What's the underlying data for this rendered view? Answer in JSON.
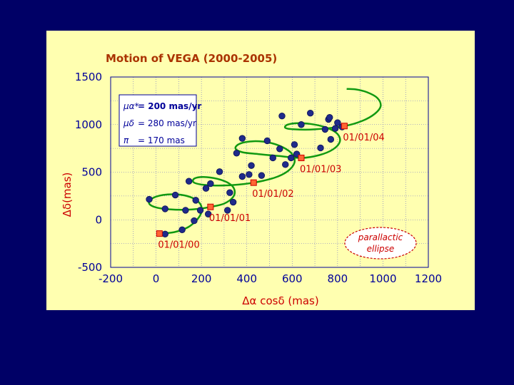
{
  "chart_data": {
    "type": "scatter",
    "title": "Motion of VEGA (2000-2005)",
    "xlabel": "Δα cosδ (mas)",
    "ylabel": "Δδ(mas)",
    "xlim": [
      -200,
      1200
    ],
    "ylim": [
      -500,
      1500
    ],
    "x_ticks": [
      -200,
      0,
      200,
      400,
      600,
      800,
      1000,
      1200
    ],
    "y_ticks": [
      -500,
      0,
      500,
      1000,
      1500
    ],
    "grid": true,
    "colors": {
      "background": "#ffffb0",
      "frame": "#000066",
      "grid": "#6666cc",
      "text": "#000099",
      "track": "#119911",
      "points": "#1f2a8a",
      "epochs": "#cc0000",
      "title": "#aa3300"
    },
    "legend": {
      "lines": [
        {
          "symbol": "μα*",
          "text": "= 200 mas/yr"
        },
        {
          "symbol": "μδ",
          "text": "= 280 mas/yr"
        },
        {
          "symbol": "π",
          "text": "= 170 mas"
        }
      ]
    },
    "callout": {
      "line1": "parallactic",
      "line2": "ellipse"
    },
    "series": [
      {
        "values": [
          [
            40,
            -150
          ],
          [
            115,
            -105
          ],
          [
            168,
            -10
          ],
          [
            195,
            100
          ],
          [
            175,
            205
          ],
          [
            85,
            260
          ],
          [
            -30,
            215
          ],
          [
            40,
            115
          ],
          [
            130,
            100
          ],
          [
            230,
            60
          ],
          [
            315,
            100
          ],
          [
            340,
            185
          ],
          [
            325,
            285
          ],
          [
            240,
            380
          ],
          [
            145,
            405
          ],
          [
            220,
            330
          ],
          [
            280,
            505
          ],
          [
            420,
            570
          ],
          [
            515,
            650
          ],
          [
            545,
            745
          ],
          [
            490,
            830
          ],
          [
            380,
            855
          ],
          [
            355,
            700
          ],
          [
            380,
            455
          ],
          [
            465,
            465
          ],
          [
            570,
            580
          ],
          [
            620,
            690
          ],
          [
            725,
            755
          ],
          [
            770,
            845
          ],
          [
            745,
            950
          ],
          [
            640,
            1000
          ],
          [
            555,
            1090
          ],
          [
            680,
            1120
          ],
          [
            760,
            1055
          ],
          [
            790,
            960
          ],
          [
            820,
            975
          ]
        ]
      },
      {
        "values": [
          [
            410,
            475
          ],
          [
            595,
            650
          ],
          [
            610,
            790
          ],
          [
            765,
            1075
          ],
          [
            800,
            1020
          ]
        ]
      }
    ],
    "epochs": [
      {
        "label": "01/01/00",
        "x": 15,
        "y": -145
      },
      {
        "label": "01/01/01",
        "x": 240,
        "y": 135
      },
      {
        "label": "01/01/02",
        "x": 430,
        "y": 390
      },
      {
        "label": "01/01/03",
        "x": 640,
        "y": 650
      },
      {
        "label": "01/01/04",
        "x": 830,
        "y": 985
      }
    ],
    "track": [
      [
        15,
        -145
      ],
      [
        80,
        -130
      ],
      [
        140,
        -80
      ],
      [
        180,
        0
      ],
      [
        200,
        80
      ],
      [
        195,
        165
      ],
      [
        160,
        230
      ],
      [
        100,
        265
      ],
      [
        30,
        260
      ],
      [
        -20,
        220
      ],
      [
        -30,
        170
      ],
      [
        0,
        130
      ],
      [
        60,
        110
      ],
      [
        130,
        105
      ],
      [
        190,
        115
      ],
      [
        240,
        135
      ],
      [
        300,
        170
      ],
      [
        340,
        240
      ],
      [
        345,
        320
      ],
      [
        320,
        385
      ],
      [
        270,
        430
      ],
      [
        210,
        450
      ],
      [
        170,
        435
      ],
      [
        165,
        395
      ],
      [
        200,
        370
      ],
      [
        260,
        360
      ],
      [
        340,
        365
      ],
      [
        430,
        390
      ],
      [
        520,
        440
      ],
      [
        580,
        510
      ],
      [
        610,
        600
      ],
      [
        600,
        690
      ],
      [
        560,
        760
      ],
      [
        500,
        810
      ],
      [
        430,
        825
      ],
      [
        370,
        800
      ],
      [
        350,
        750
      ],
      [
        380,
        710
      ],
      [
        450,
        690
      ],
      [
        540,
        670
      ],
      [
        640,
        650
      ],
      [
        720,
        680
      ],
      [
        780,
        740
      ],
      [
        810,
        820
      ],
      [
        800,
        900
      ],
      [
        760,
        960
      ],
      [
        700,
        1000
      ],
      [
        630,
        1015
      ],
      [
        580,
        1000
      ],
      [
        570,
        965
      ],
      [
        610,
        950
      ],
      [
        700,
        950
      ],
      [
        830,
        985
      ],
      [
        910,
        1040
      ],
      [
        965,
        1115
      ],
      [
        990,
        1195
      ],
      [
        975,
        1280
      ],
      [
        930,
        1340
      ],
      [
        880,
        1370
      ],
      [
        840,
        1375
      ]
    ]
  }
}
